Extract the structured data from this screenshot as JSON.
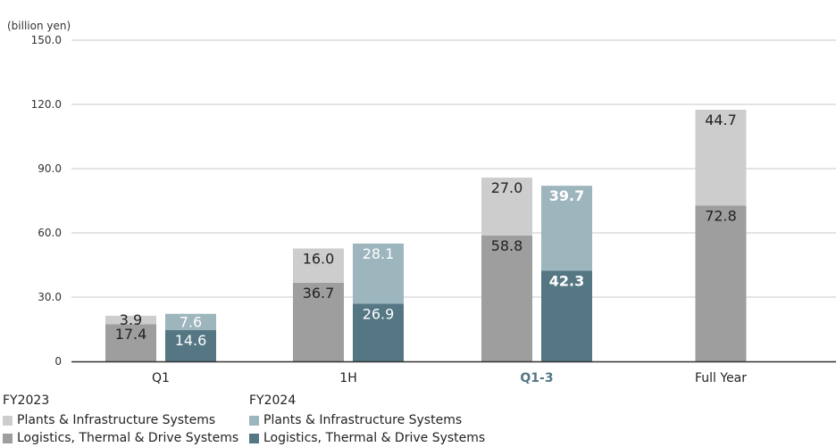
{
  "chart_data": {
    "type": "bar",
    "unit_label": "(billion yen)",
    "categories": [
      "Q1",
      "1H",
      "Q1-3",
      "Full Year"
    ],
    "highlight_category": "Q1-3",
    "ylim": [
      0,
      150
    ],
    "yticks": [
      "0",
      "30.0",
      "60.0",
      "90.0",
      "120.0",
      "150.0"
    ],
    "stacked": true,
    "groups": [
      {
        "name": "FY2023",
        "series": [
          {
            "name": "Logistics, Thermal & Drive Systems",
            "color": "#9e9e9e",
            "values": [
              17.4,
              36.7,
              58.8,
              72.8
            ],
            "labels": [
              "17.4",
              "36.7",
              "58.8",
              "72.8"
            ]
          },
          {
            "name": "Plants & Infrastructure Systems",
            "color": "#cdcdcd",
            "values": [
              3.9,
              16.0,
              27.0,
              44.7
            ],
            "labels": [
              "3.9",
              "16.0",
              "27.0",
              "44.7"
            ]
          }
        ]
      },
      {
        "name": "FY2024",
        "series": [
          {
            "name": "Logistics, Thermal & Drive Systems",
            "color": "#557784",
            "values": [
              14.6,
              26.9,
              42.3,
              null
            ],
            "labels": [
              "14.6",
              "26.9",
              "42.3",
              null
            ]
          },
          {
            "name": "Plants & Infrastructure Systems",
            "color": "#9db5bd",
            "values": [
              7.6,
              28.1,
              39.7,
              null
            ],
            "labels": [
              "7.6",
              "28.1",
              "39.7",
              null
            ]
          }
        ]
      }
    ]
  },
  "legend": {
    "fy2023": {
      "title": "FY2023",
      "plants": "Plants & Infrastructure Systems",
      "logistics": "Logistics, Thermal & Drive Systems",
      "plants_color": "#cdcdcd",
      "logistics_color": "#9e9e9e"
    },
    "fy2024": {
      "title": "FY2024",
      "plants": "Plants & Infrastructure Systems",
      "logistics": "Logistics, Thermal & Drive Systems",
      "plants_color": "#9db5bd",
      "logistics_color": "#557784"
    }
  }
}
